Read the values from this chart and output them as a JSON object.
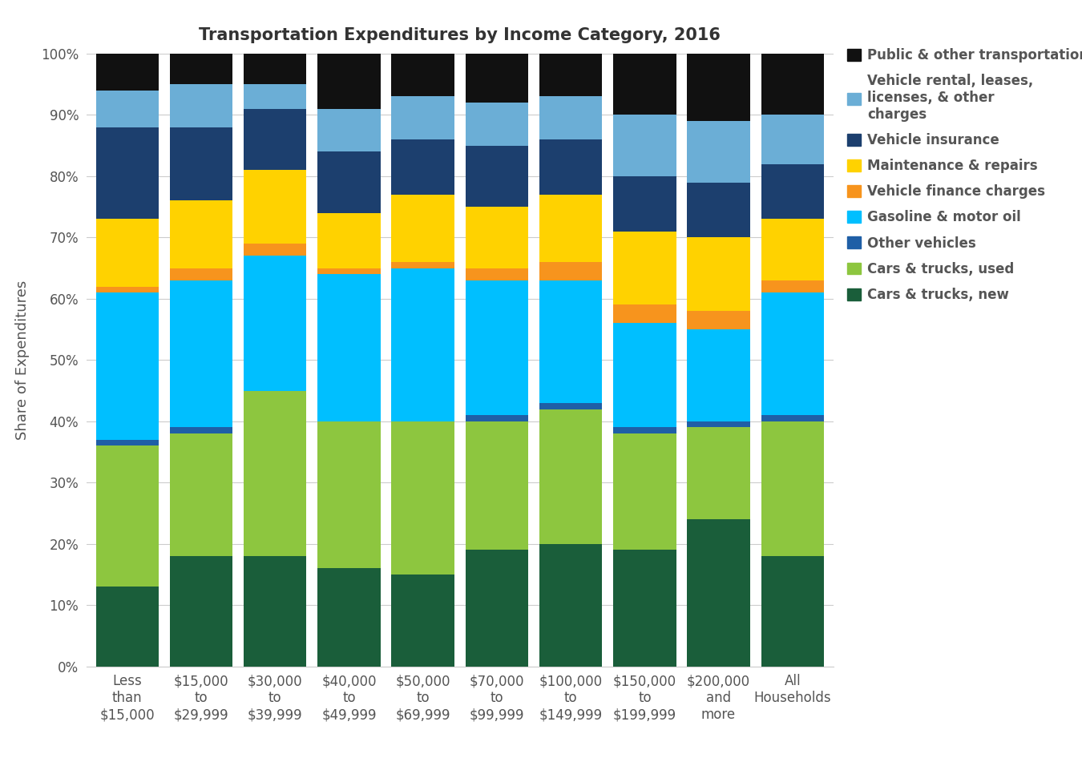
{
  "title": "Transportation Expenditures by Income Category, 2016",
  "ylabel": "Share of Expenditures",
  "categories": [
    "Less\nthan\n$15,000",
    "$15,000\nto\n$29,999",
    "$30,000\nto\n$39,999",
    "$40,000\nto\n$49,999",
    "$50,000\nto\n$69,999",
    "$70,000\nto\n$99,999",
    "$100,000\nto\n$149,999",
    "$150,000\nto\n$199,999",
    "$200,000\nand\nmore",
    "All\nHouseholds"
  ],
  "series": {
    "Cars & trucks, new": [
      13,
      18,
      18,
      16,
      15,
      19,
      20,
      19,
      24,
      18
    ],
    "Cars & trucks, used": [
      23,
      20,
      27,
      24,
      25,
      21,
      22,
      19,
      15,
      22
    ],
    "Other vehicles": [
      1,
      1,
      0,
      0,
      0,
      1,
      1,
      1,
      1,
      1
    ],
    "Gasoline & motor oil": [
      24,
      24,
      22,
      24,
      25,
      22,
      20,
      17,
      15,
      20
    ],
    "Vehicle finance charges": [
      1,
      2,
      2,
      1,
      1,
      2,
      3,
      3,
      3,
      2
    ],
    "Maintenance & repairs": [
      11,
      11,
      12,
      9,
      11,
      10,
      11,
      12,
      12,
      10
    ],
    "Vehicle insurance": [
      15,
      12,
      10,
      10,
      9,
      10,
      9,
      9,
      9,
      9
    ],
    "Vehicle rental, leases, & other charges": [
      6,
      7,
      4,
      7,
      7,
      7,
      7,
      10,
      10,
      8
    ],
    "Public & other transportation": [
      6,
      5,
      5,
      9,
      7,
      8,
      7,
      10,
      11,
      10
    ]
  },
  "colors": {
    "Cars & trucks, new": "#1a5e3a",
    "Cars & trucks, used": "#8dc63f",
    "Other vehicles": "#1f5fa6",
    "Gasoline & motor oil": "#00bfff",
    "Vehicle finance charges": "#f7941d",
    "Maintenance & repairs": "#ffd200",
    "Vehicle insurance": "#1c3f6e",
    "Vehicle rental, leases, & other charges": "#6baed6",
    "Public & other transportation": "#111111"
  },
  "legend_order": [
    "Public & other transportation",
    "Vehicle rental, leases, & other charges",
    "Vehicle insurance",
    "Maintenance & repairs",
    "Vehicle finance charges",
    "Gasoline & motor oil",
    "Other vehicles",
    "Cars & trucks, used",
    "Cars & trucks, new"
  ],
  "legend_labels": {
    "Vehicle rental, leases, & other charges": "Vehicle rental, leases,\nlicenses, & other\ncharges"
  },
  "figsize": [
    13.5,
    9.56
  ],
  "dpi": 100,
  "bar_width": 0.85,
  "title_fontsize": 15,
  "axis_label_fontsize": 13,
  "tick_fontsize": 12,
  "legend_fontsize": 12,
  "background_color": "#ffffff",
  "grid_color": "#cccccc",
  "text_color": "#555555",
  "title_color": "#333333"
}
